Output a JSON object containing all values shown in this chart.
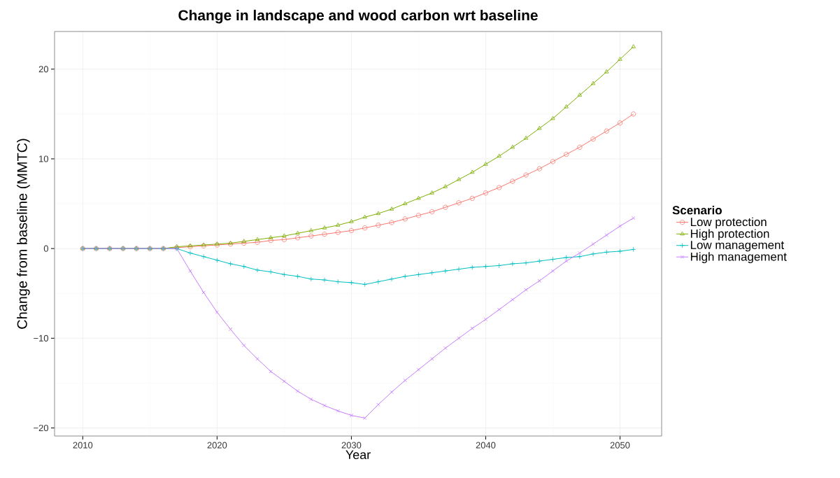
{
  "chart_data": {
    "type": "line",
    "title": "Change in landscape and wood carbon wrt baseline",
    "xlabel": "Year",
    "ylabel": "Change from baseline (MMTC)",
    "legend_title": "Scenario",
    "x": [
      2010,
      2011,
      2012,
      2013,
      2014,
      2015,
      2016,
      2017,
      2018,
      2019,
      2020,
      2021,
      2022,
      2023,
      2024,
      2025,
      2026,
      2027,
      2028,
      2029,
      2030,
      2031,
      2032,
      2033,
      2034,
      2035,
      2036,
      2037,
      2038,
      2039,
      2040,
      2041,
      2042,
      2043,
      2044,
      2045,
      2046,
      2047,
      2048,
      2049,
      2050,
      2051
    ],
    "series": [
      {
        "name": "Low protection",
        "color": "#f8766d",
        "marker": "circle",
        "values": [
          0,
          0,
          0,
          0,
          0,
          0,
          0,
          0.1,
          0.2,
          0.3,
          0.4,
          0.5,
          0.6,
          0.7,
          0.9,
          1.0,
          1.2,
          1.4,
          1.6,
          1.8,
          2.0,
          2.3,
          2.6,
          2.9,
          3.3,
          3.7,
          4.1,
          4.6,
          5.1,
          5.6,
          6.2,
          6.8,
          7.5,
          8.2,
          8.9,
          9.7,
          10.5,
          11.3,
          12.2,
          13.1,
          14.0,
          15.0
        ]
      },
      {
        "name": "High protection",
        "color": "#7cae00",
        "marker": "triangle",
        "values": [
          0,
          0,
          0,
          0,
          0,
          0,
          0,
          0.2,
          0.3,
          0.4,
          0.5,
          0.6,
          0.8,
          1.0,
          1.2,
          1.4,
          1.7,
          2.0,
          2.3,
          2.6,
          3.0,
          3.5,
          3.9,
          4.4,
          5.0,
          5.6,
          6.2,
          6.9,
          7.7,
          8.5,
          9.4,
          10.3,
          11.3,
          12.3,
          13.4,
          14.5,
          15.8,
          17.1,
          18.4,
          19.7,
          21.1,
          22.5
        ]
      },
      {
        "name": "Low management",
        "color": "#00bfc4",
        "marker": "plus",
        "values": [
          0,
          0,
          0,
          0,
          0,
          0,
          0,
          0,
          -0.5,
          -0.9,
          -1.3,
          -1.7,
          -2.0,
          -2.4,
          -2.6,
          -2.9,
          -3.1,
          -3.4,
          -3.5,
          -3.7,
          -3.8,
          -4.0,
          -3.7,
          -3.4,
          -3.1,
          -2.9,
          -2.7,
          -2.5,
          -2.3,
          -2.1,
          -2.0,
          -1.9,
          -1.7,
          -1.6,
          -1.4,
          -1.2,
          -1.0,
          -0.9,
          -0.6,
          -0.4,
          -0.3,
          -0.1
        ]
      },
      {
        "name": "High management",
        "color": "#c77cff",
        "marker": "cross",
        "values": [
          0,
          0,
          0,
          0,
          0,
          0,
          0,
          0,
          -2.5,
          -4.9,
          -7.1,
          -9.0,
          -10.8,
          -12.3,
          -13.7,
          -14.8,
          -15.9,
          -16.8,
          -17.5,
          -18.1,
          -18.6,
          -18.9,
          -17.4,
          -16.0,
          -14.7,
          -13.5,
          -12.3,
          -11.1,
          -10.0,
          -8.9,
          -7.9,
          -6.8,
          -5.7,
          -4.6,
          -3.6,
          -2.5,
          -1.4,
          -0.5,
          0.5,
          1.5,
          2.5,
          3.4
        ]
      }
    ],
    "xlim": [
      2007.9,
      2053.1
    ],
    "ylim": [
      -20.9,
      24.2
    ],
    "xticks": [
      2010,
      2020,
      2030,
      2040,
      2050
    ],
    "yticks": [
      {
        "value": -20,
        "label": "−20"
      },
      {
        "value": -10,
        "label": "−10"
      },
      0,
      10,
      20
    ],
    "grid": true,
    "legend": "right",
    "line_style": "solid"
  }
}
